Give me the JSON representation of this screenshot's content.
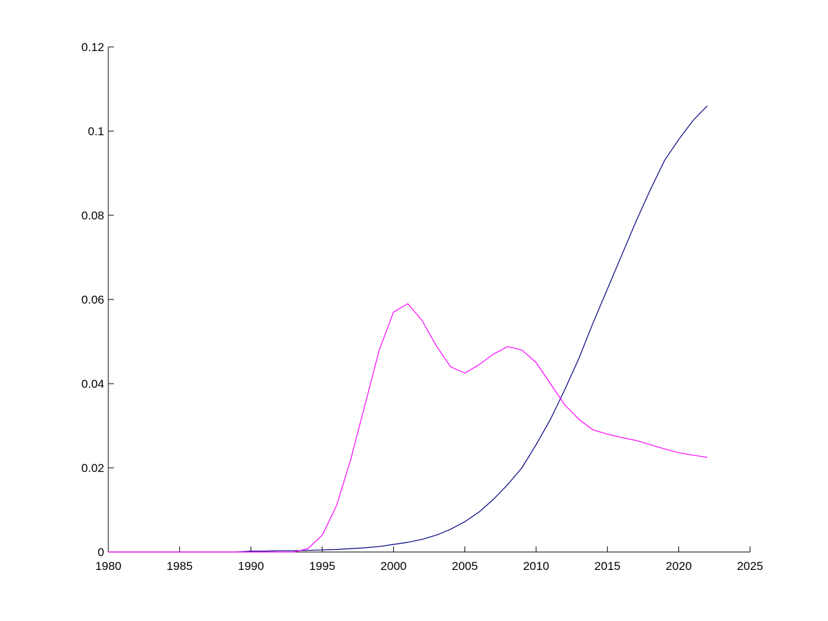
{
  "chart_data": {
    "type": "line",
    "title": "",
    "xlabel": "",
    "ylabel": "",
    "xlim": [
      1980,
      2025
    ],
    "ylim": [
      0,
      0.12
    ],
    "grid": false,
    "legend": "none",
    "x_ticks": [
      1980,
      1985,
      1990,
      1995,
      2000,
      2005,
      2010,
      2015,
      2020,
      2025
    ],
    "y_ticks": [
      0,
      0.02,
      0.04,
      0.06,
      0.08,
      0.1,
      0.12
    ],
    "x_tick_labels": [
      "1980",
      "1985",
      "1990",
      "1995",
      "2000",
      "2005",
      "2010",
      "2015",
      "2020",
      "2025"
    ],
    "y_tick_labels": [
      "0",
      "0.02",
      "0.04",
      "0.06",
      "0.08",
      "0.1",
      "0.12"
    ],
    "series": [
      {
        "color": "#000080",
        "x": [
          1980,
          1981,
          1982,
          1983,
          1984,
          1985,
          1986,
          1987,
          1988,
          1989,
          1990,
          1991,
          1992,
          1993,
          1994,
          1995,
          1996,
          1997,
          1998,
          1999,
          2000,
          2001,
          2002,
          2003,
          2004,
          2005,
          2006,
          2007,
          2008,
          2009,
          2010,
          2011,
          2012,
          2013,
          2014,
          2015,
          2016,
          2017,
          2018,
          2019,
          2020,
          2021,
          2022
        ],
        "y": [
          0,
          0,
          0,
          0,
          0,
          0,
          0,
          0,
          0,
          0,
          0.0002,
          0.0002,
          0.0003,
          0.0003,
          0.0004,
          0.0005,
          0.0006,
          0.0008,
          0.001,
          0.0013,
          0.0018,
          0.0023,
          0.003,
          0.004,
          0.0054,
          0.0072,
          0.0095,
          0.0125,
          0.016,
          0.02,
          0.0255,
          0.0315,
          0.0385,
          0.046,
          0.0545,
          0.0625,
          0.0705,
          0.0785,
          0.086,
          0.093,
          0.098,
          0.1025,
          0.106
        ]
      },
      {
        "color": "#ff00ff",
        "x": [
          1980,
          1981,
          1982,
          1983,
          1984,
          1985,
          1986,
          1987,
          1988,
          1989,
          1990,
          1991,
          1992,
          1993,
          1994,
          1995,
          1996,
          1997,
          1998,
          1999,
          2000,
          2001,
          2002,
          2003,
          2004,
          2005,
          2006,
          2007,
          2008,
          2009,
          2010,
          2011,
          2012,
          2013,
          2014,
          2015,
          2016,
          2017,
          2018,
          2019,
          2020,
          2021,
          2022
        ],
        "y": [
          0,
          0,
          0,
          0,
          0,
          0,
          0,
          0,
          0,
          0,
          0,
          0,
          0,
          0,
          0.0008,
          0.004,
          0.011,
          0.022,
          0.035,
          0.048,
          0.057,
          0.059,
          0.055,
          0.049,
          0.044,
          0.0425,
          0.0445,
          0.047,
          0.0488,
          0.048,
          0.045,
          0.04,
          0.035,
          0.0315,
          0.029,
          0.028,
          0.0272,
          0.0265,
          0.0255,
          0.0245,
          0.0236,
          0.023,
          0.0225
        ]
      }
    ]
  }
}
